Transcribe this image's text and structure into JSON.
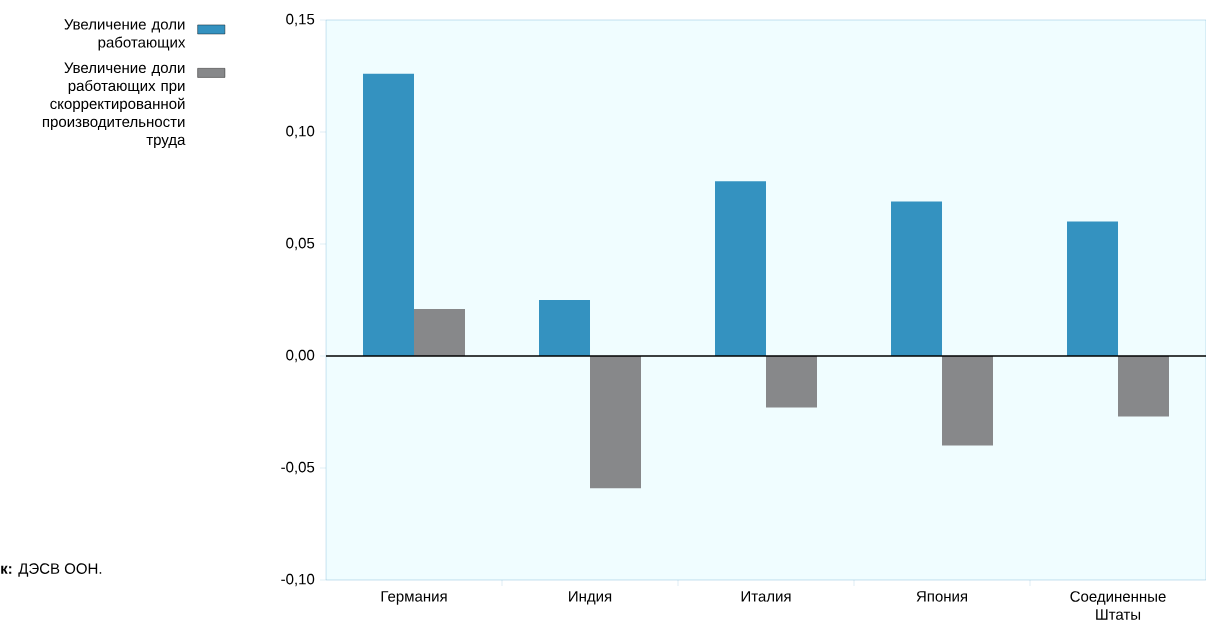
{
  "chart_data": {
    "type": "bar",
    "categories": [
      "Германия",
      "Индия",
      "Италия",
      "Япония",
      "Соединенные Штаты"
    ],
    "series": [
      {
        "name": "Увеличение доли работающих",
        "color": "#3492c0",
        "values": [
          0.126,
          0.025,
          0.078,
          0.069,
          0.06
        ]
      },
      {
        "name": "Увеличение доли работающих при скорректированной производительности труда",
        "color": "#87888a",
        "values": [
          0.021,
          -0.059,
          -0.023,
          -0.04,
          -0.027
        ]
      }
    ],
    "ylim": [
      -0.1,
      0.15
    ],
    "yticks": [
      {
        "value": -0.1,
        "label": "-0,10"
      },
      {
        "value": -0.05,
        "label": "-0,05"
      },
      {
        "value": 0,
        "label": "0,00"
      },
      {
        "value": 0.05,
        "label": "0,05"
      },
      {
        "value": 0.1,
        "label": "0,10"
      },
      {
        "value": 0.15,
        "label": "0,15"
      }
    ],
    "grid": false,
    "ref_lines": [
      {
        "axis": "y",
        "value": 0,
        "color": "#000000"
      }
    ],
    "legend": "left",
    "annotations": [
      "**к:** ДЭСВ ООН."
    ]
  }
}
